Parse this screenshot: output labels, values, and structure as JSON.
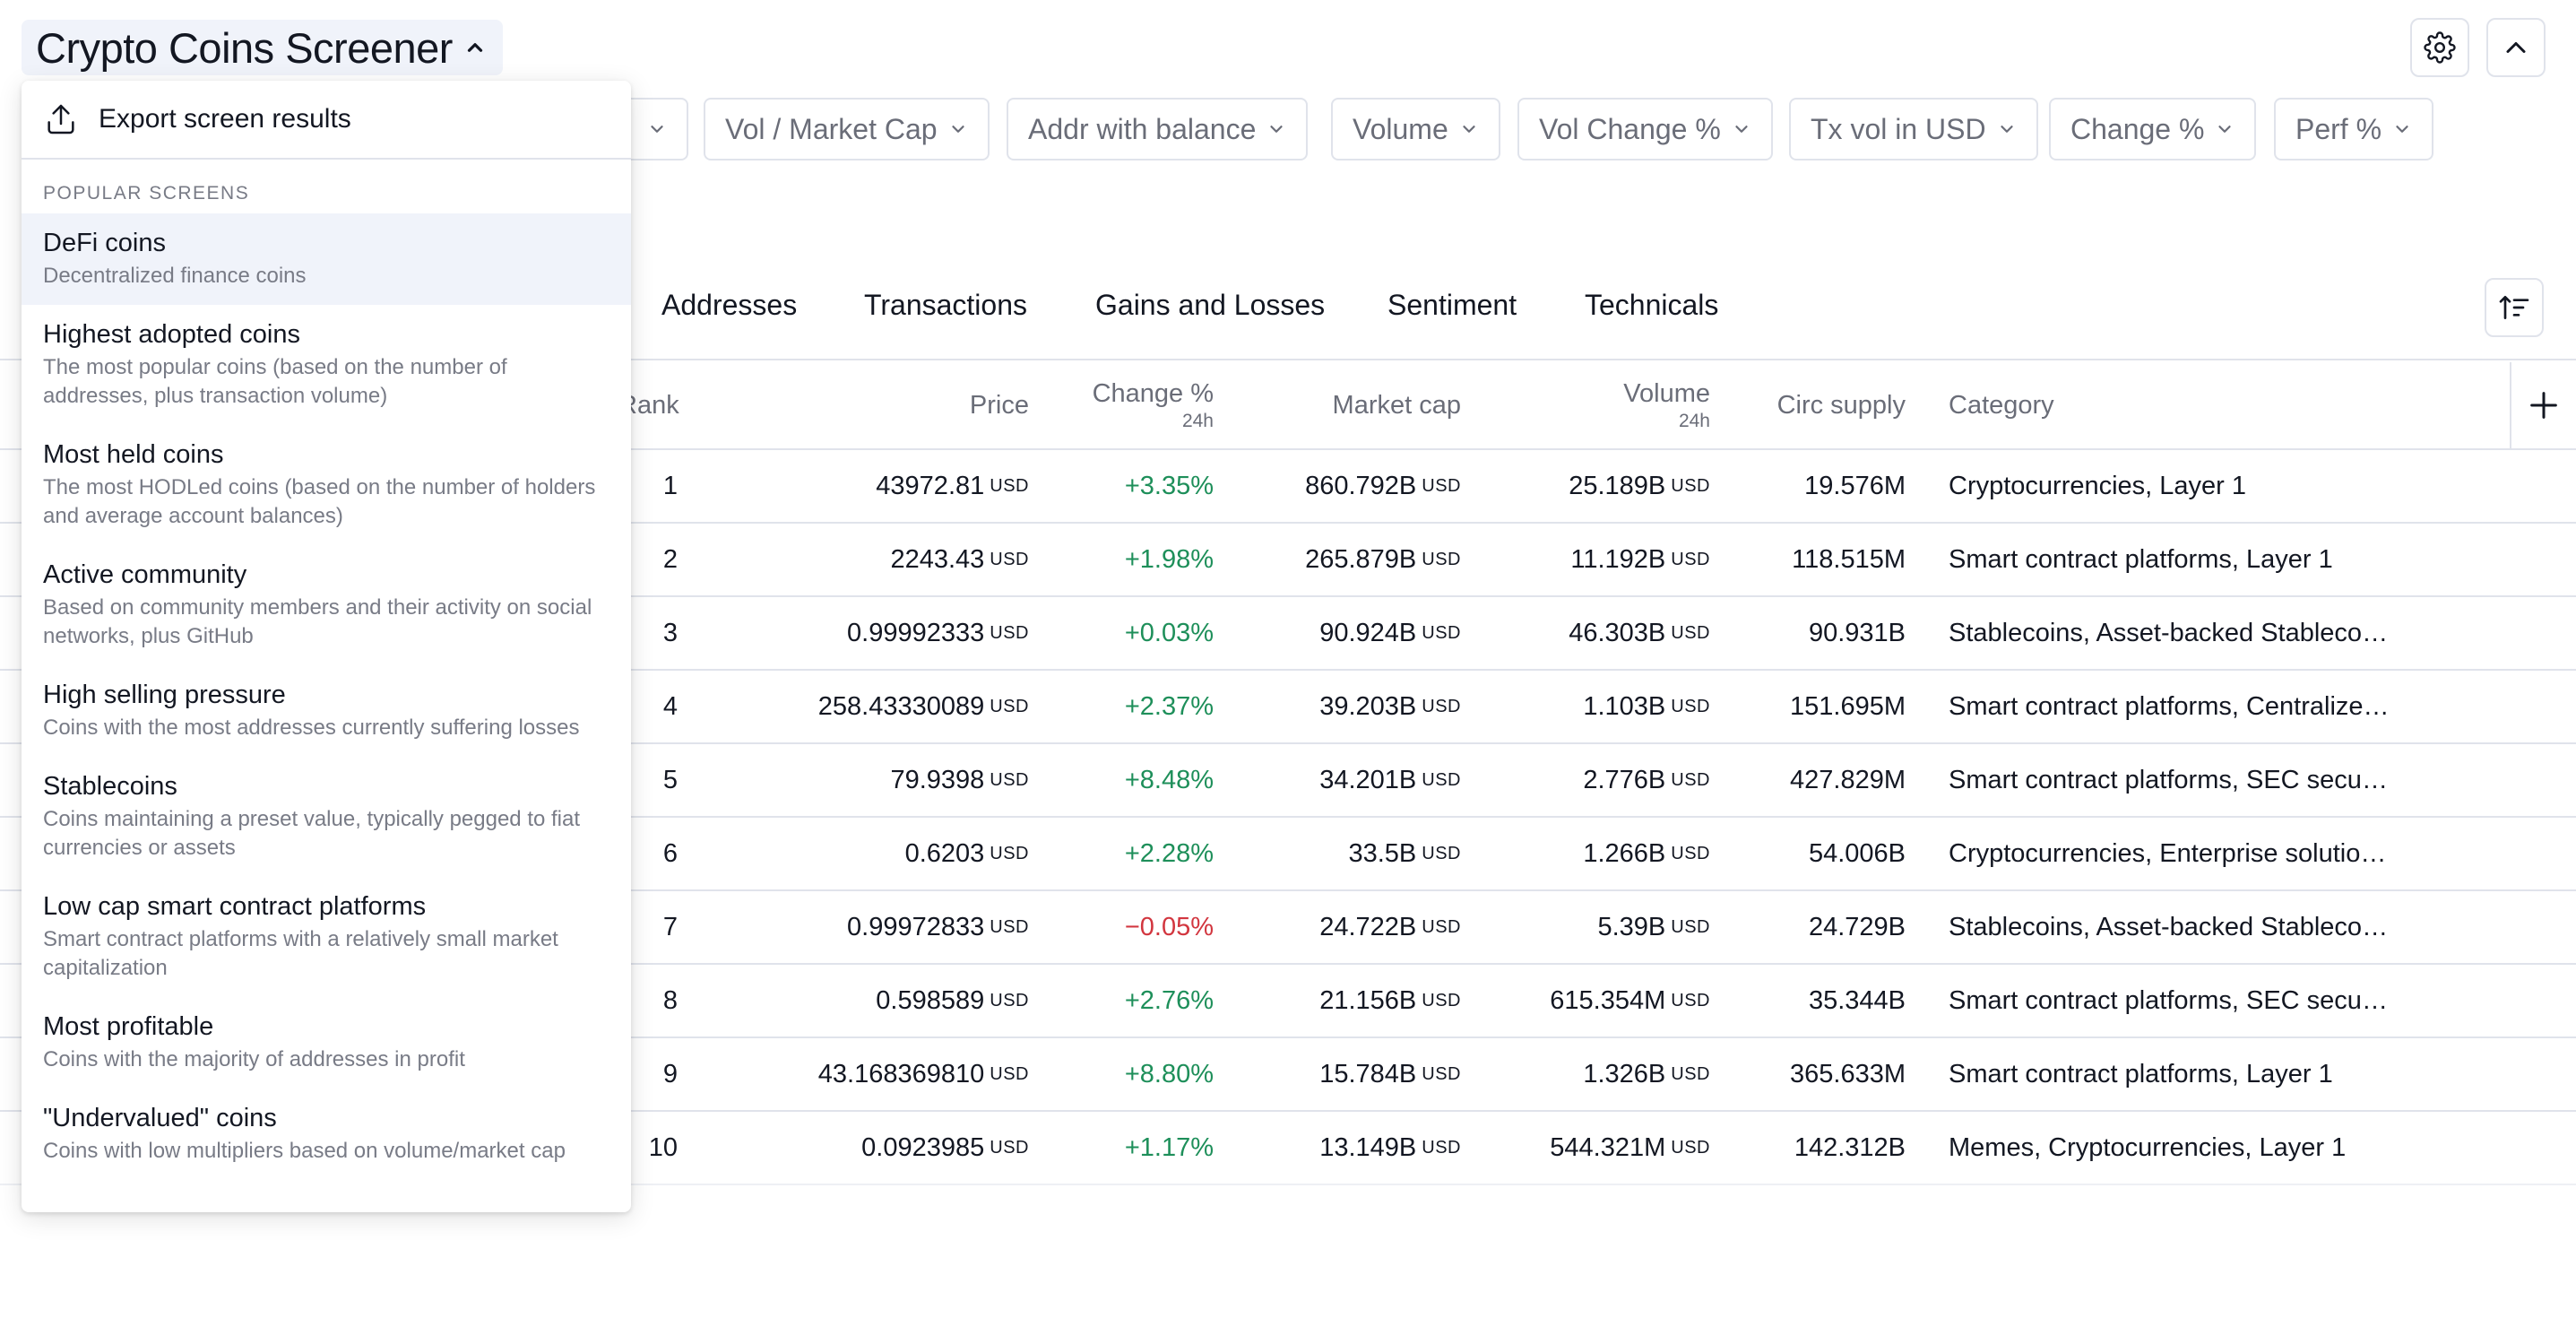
{
  "header": {
    "title": "Crypto Coins Screener",
    "settings_icon": "gear-icon",
    "collapse_icon": "chevron-up-icon"
  },
  "filters": [
    "Vol / Market Cap",
    "Addr with balance",
    "Volume",
    "Vol Change %",
    "Tx vol in USD",
    "Change %",
    "Perf %"
  ],
  "tabs": [
    "Addresses",
    "Transactions",
    "Gains and Losses",
    "Sentiment",
    "Technicals"
  ],
  "table": {
    "columns": {
      "rank": "Rank",
      "price": "Price",
      "change": "Change %",
      "change_sub": "24h",
      "market_cap": "Market cap",
      "volume": "Volume",
      "volume_sub": "24h",
      "circ_supply": "Circ supply",
      "category": "Category"
    },
    "unit": "USD",
    "rows": [
      {
        "rank": "1",
        "price": "43972.81",
        "change": "+3.35%",
        "market_cap": "860.792B",
        "volume": "25.189B",
        "circ_supply": "19.576M",
        "category": "Cryptocurrencies, Layer 1"
      },
      {
        "rank": "2",
        "price": "2243.43",
        "change": "+1.98%",
        "market_cap": "265.879B",
        "volume": "11.192B",
        "circ_supply": "118.515M",
        "category": "Smart contract platforms, Layer 1"
      },
      {
        "rank": "3",
        "price": "0.99992333",
        "change": "+0.03%",
        "market_cap": "90.924B",
        "volume": "46.303B",
        "circ_supply": "90.931B",
        "category": "Stablecoins, Asset-backed Stablecoi…"
      },
      {
        "rank": "4",
        "price": "258.43330089",
        "change": "+2.37%",
        "market_cap": "39.203B",
        "volume": "1.103B",
        "circ_supply": "151.695M",
        "category": "Smart contract platforms, Centralize…"
      },
      {
        "rank": "5",
        "price": "79.9398",
        "change": "+8.48%",
        "market_cap": "34.201B",
        "volume": "2.776B",
        "circ_supply": "427.829M",
        "category": "Smart contract platforms, SEC secur…"
      },
      {
        "rank": "6",
        "price": "0.6203",
        "change": "+2.28%",
        "market_cap": "33.5B",
        "volume": "1.266B",
        "circ_supply": "54.006B",
        "category": "Cryptocurrencies, Enterprise solutio…"
      },
      {
        "rank": "7",
        "price": "0.99972833",
        "change": "−0.05%",
        "market_cap": "24.722B",
        "volume": "5.39B",
        "circ_supply": "24.729B",
        "category": "Stablecoins, Asset-backed Stablecoi…"
      },
      {
        "rank": "8",
        "price": "0.598589",
        "change": "+2.76%",
        "market_cap": "21.156B",
        "volume": "615.354M",
        "circ_supply": "35.344B",
        "category": "Smart contract platforms, SEC secur…"
      },
      {
        "rank": "9",
        "price": "43.168369810",
        "change": "+8.80%",
        "market_cap": "15.784B",
        "volume": "1.326B",
        "circ_supply": "365.633M",
        "category": "Smart contract platforms, Layer 1"
      },
      {
        "rank": "10",
        "price": "0.0923985",
        "change": "+1.17%",
        "market_cap": "13.149B",
        "volume": "544.321M",
        "circ_supply": "142.312B",
        "category": "Memes, Cryptocurrencies, Layer 1"
      }
    ]
  },
  "menu": {
    "export_label": "Export screen results",
    "section_label": "POPULAR SCREENS",
    "items": [
      {
        "title": "DeFi coins",
        "desc": "Decentralized finance coins"
      },
      {
        "title": "Highest adopted coins",
        "desc": "The most popular coins (based on the number of addresses, plus transaction volume)"
      },
      {
        "title": "Most held coins",
        "desc": "The most HODLed coins (based on the number of holders and average account balances)"
      },
      {
        "title": "Active community",
        "desc": "Based on community members and their activity on social networks, plus GitHub"
      },
      {
        "title": "High selling pressure",
        "desc": "Coins with the most addresses currently suffering losses"
      },
      {
        "title": "Stablecoins",
        "desc": "Coins maintaining a preset value, typically pegged to fiat currencies or assets"
      },
      {
        "title": "Low cap smart contract platforms",
        "desc": "Smart contract platforms with a relatively small market capitalization"
      },
      {
        "title": "Most profitable",
        "desc": "Coins with the majority of addresses in profit"
      },
      {
        "title": "\"Undervalued\" coins",
        "desc": "Coins with low multipliers based on volume/market cap"
      }
    ]
  },
  "colors": {
    "positive": "#1e8f5a",
    "negative": "#d2363f",
    "muted_text": "#6a6d78",
    "border": "#e0e3eb",
    "highlight": "#f0f3fa"
  }
}
